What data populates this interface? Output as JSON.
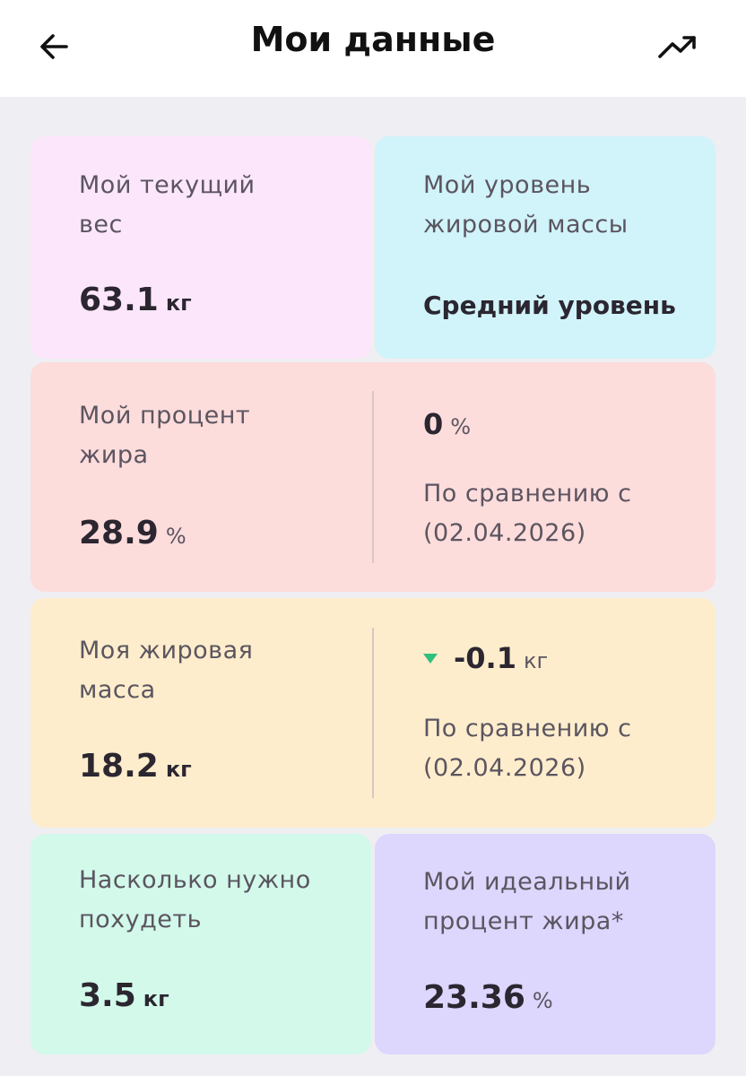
{
  "header": {
    "title": "Мои данные",
    "back_icon": "arrow-left-icon",
    "trend_icon": "trending-up-icon"
  },
  "cards": {
    "weight": {
      "label_line1": "Мой текущий",
      "label_line2": "вес",
      "value": "63.1",
      "unit": "кг",
      "color": "#fce6fb"
    },
    "fat_level": {
      "label_line1": "Мой уровень",
      "label_line2": "жировой массы",
      "value": "Средний уровень",
      "color": "#d1f3fa"
    },
    "fat_percent": {
      "label_line1": "Мой процент",
      "label_line2": "жира",
      "value": "28.9",
      "unit": "%",
      "delta_value": "0",
      "delta_unit": "%",
      "compare_line1": "По сравнению с",
      "compare_line2": "(02.04.2026)",
      "color": "#fddcdc"
    },
    "fat_mass": {
      "label_line1": "Моя жировая",
      "label_line2": "масса",
      "value": "18.2",
      "unit": "кг",
      "delta_value": "-0.1",
      "delta_unit": "кг",
      "compare_line1": "По сравнению с",
      "compare_line2": "(02.04.2026)",
      "color": "#fdedcc",
      "delta_color": "#2fbf7e"
    },
    "lose": {
      "label_line1": "Насколько нужно",
      "label_line2": "похудеть",
      "value": "3.5",
      "unit": "кг",
      "color": "#d2f9ea"
    },
    "ideal_fat": {
      "label_line1": "Мой идеальный",
      "label_line2": "процент жира*",
      "value": "23.36",
      "unit": "%",
      "color": "#ddd6fd"
    }
  }
}
